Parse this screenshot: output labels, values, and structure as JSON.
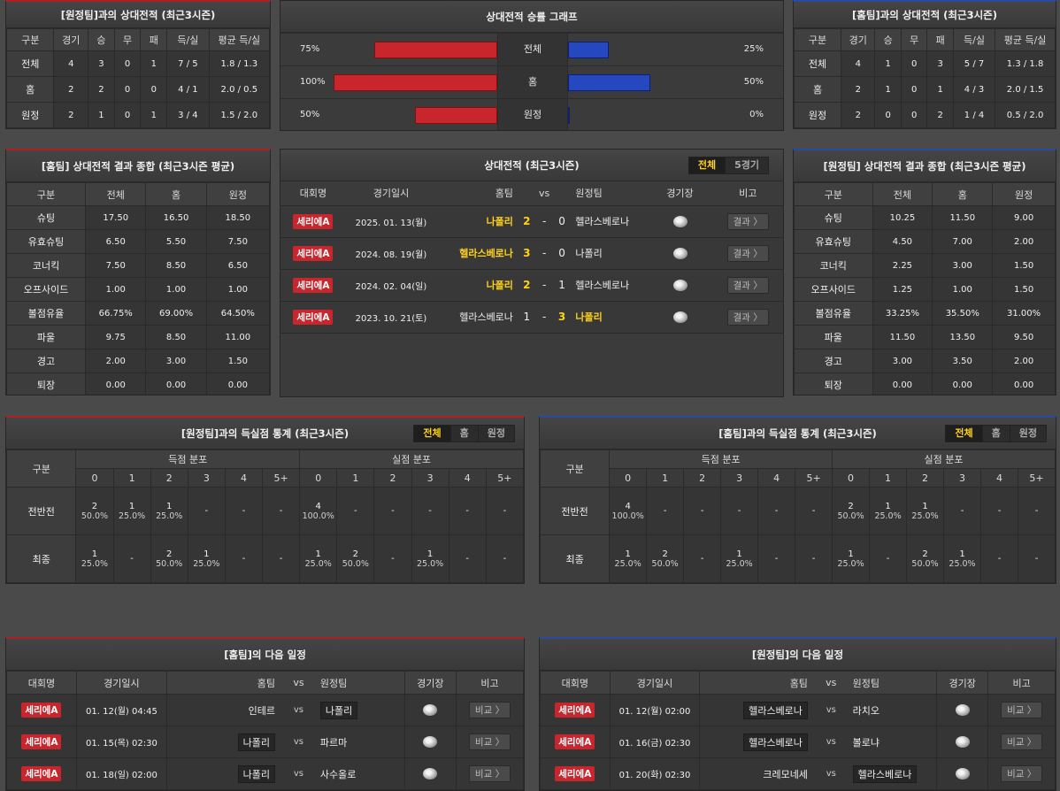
{
  "away_h2h": {
    "title": "[원정팀]과의 상대전적 (최근3시즌)",
    "headers": [
      "구분",
      "경기",
      "승",
      "무",
      "패",
      "득/실",
      "평균 득/실"
    ],
    "rows": [
      [
        "전체",
        "4",
        "3",
        "0",
        "1",
        "7 / 5",
        "1.8 / 1.3"
      ],
      [
        "홈",
        "2",
        "2",
        "0",
        "0",
        "4 / 1",
        "2.0 / 0.5"
      ],
      [
        "원정",
        "2",
        "1",
        "0",
        "1",
        "3 / 4",
        "1.5 / 2.0"
      ]
    ]
  },
  "graph": {
    "title": "상대전적 승률 그래프",
    "rows": [
      {
        "label": "전체",
        "left": "75%",
        "right": "25%",
        "lv": 75,
        "rv": 25
      },
      {
        "label": "홈",
        "left": "100%",
        "right": "50%",
        "lv": 100,
        "rv": 50
      },
      {
        "label": "원정",
        "left": "50%",
        "right": "0%",
        "lv": 50,
        "rv": 0
      }
    ],
    "home_color": "#c8252d",
    "away_color": "#2548c0"
  },
  "home_h2h": {
    "title": "[홈팀]과의 상대전적 (최근3시즌)",
    "headers": [
      "구분",
      "경기",
      "승",
      "무",
      "패",
      "득/실",
      "평균 득/실"
    ],
    "rows": [
      [
        "전체",
        "4",
        "1",
        "0",
        "3",
        "5 / 7",
        "1.3 / 1.8"
      ],
      [
        "홈",
        "2",
        "1",
        "0",
        "1",
        "4 / 3",
        "2.0 / 1.5"
      ],
      [
        "원정",
        "2",
        "0",
        "0",
        "2",
        "1 / 4",
        "0.5 / 2.0"
      ]
    ]
  },
  "home_summary": {
    "title": "[홈팀] 상대전적 결과 종합 (최근3시즌 평균)",
    "headers": [
      "구분",
      "전체",
      "홈",
      "원정"
    ],
    "rows": [
      [
        "슈팅",
        "17.50",
        "16.50",
        "18.50"
      ],
      [
        "유효슈팅",
        "6.50",
        "5.50",
        "7.50"
      ],
      [
        "코너킥",
        "7.50",
        "8.50",
        "6.50"
      ],
      [
        "오프사이드",
        "1.00",
        "1.00",
        "1.00"
      ],
      [
        "볼점유율",
        "66.75%",
        "69.00%",
        "64.50%"
      ],
      [
        "파울",
        "9.75",
        "8.50",
        "11.00"
      ],
      [
        "경고",
        "2.00",
        "3.00",
        "1.50"
      ],
      [
        "퇴장",
        "0.00",
        "0.00",
        "0.00"
      ]
    ]
  },
  "away_summary": {
    "title": "[원정팀] 상대전적 결과 종합 (최근3시즌 평균)",
    "headers": [
      "구분",
      "전체",
      "홈",
      "원정"
    ],
    "rows": [
      [
        "슈팅",
        "10.25",
        "11.50",
        "9.00"
      ],
      [
        "유효슈팅",
        "4.50",
        "7.00",
        "2.00"
      ],
      [
        "코너킥",
        "2.25",
        "3.00",
        "1.50"
      ],
      [
        "오프사이드",
        "1.25",
        "1.00",
        "1.50"
      ],
      [
        "볼점유율",
        "33.25%",
        "35.50%",
        "31.00%"
      ],
      [
        "파울",
        "11.50",
        "13.50",
        "9.50"
      ],
      [
        "경고",
        "3.00",
        "3.50",
        "2.00"
      ],
      [
        "퇴장",
        "0.00",
        "0.00",
        "0.00"
      ]
    ]
  },
  "recent": {
    "title": "상대전적 (최근3시즌)",
    "toggle": [
      "전체",
      "5경기"
    ],
    "headers": {
      "league": "대회명",
      "date": "경기일시",
      "home": "홈팀",
      "vs": "vs",
      "away": "원정팀",
      "venue": "경기장",
      "note": "비고"
    },
    "result_label": "결과 〉",
    "matches": [
      {
        "league": "세리에A",
        "date": "2025. 01. 13(월)",
        "home": "나폴리",
        "hs": "2",
        "as": "0",
        "away": "헬라스베로나",
        "win": "home"
      },
      {
        "league": "세리에A",
        "date": "2024. 08. 19(월)",
        "home": "헬라스베로나",
        "hs": "3",
        "as": "0",
        "away": "나폴리",
        "win": "home"
      },
      {
        "league": "세리에A",
        "date": "2024. 02. 04(일)",
        "home": "나폴리",
        "hs": "2",
        "as": "1",
        "away": "헬라스베로나",
        "win": "home"
      },
      {
        "league": "세리에A",
        "date": "2023. 10. 21(토)",
        "home": "헬라스베로나",
        "hs": "1",
        "as": "3",
        "away": "나폴리",
        "win": "away"
      }
    ]
  },
  "goal_stats_left": {
    "title": "[원정팀]과의 득실점 통계 (최근3시즌)",
    "toggle": [
      "전체",
      "홈",
      "원정"
    ],
    "col_label": "구분",
    "scored_label": "득점 분포",
    "conceded_label": "실점 분포",
    "buckets": [
      "0",
      "1",
      "2",
      "3",
      "4",
      "5+"
    ],
    "rows": [
      {
        "label": "전반전",
        "scored": [
          [
            "2",
            "50.0%"
          ],
          [
            "1",
            "25.0%"
          ],
          [
            "1",
            "25.0%"
          ],
          [
            "-",
            ""
          ],
          [
            "-",
            ""
          ],
          [
            "-",
            ""
          ]
        ],
        "conceded": [
          [
            "4",
            "100.0%"
          ],
          [
            "-",
            ""
          ],
          [
            "-",
            ""
          ],
          [
            "-",
            ""
          ],
          [
            "-",
            ""
          ],
          [
            "-",
            ""
          ]
        ]
      },
      {
        "label": "최종",
        "scored": [
          [
            "1",
            "25.0%"
          ],
          [
            "-",
            ""
          ],
          [
            "2",
            "50.0%"
          ],
          [
            "1",
            "25.0%"
          ],
          [
            "-",
            ""
          ],
          [
            "-",
            ""
          ]
        ],
        "conceded": [
          [
            "1",
            "25.0%"
          ],
          [
            "2",
            "50.0%"
          ],
          [
            "-",
            ""
          ],
          [
            "1",
            "25.0%"
          ],
          [
            "-",
            ""
          ],
          [
            "-",
            ""
          ]
        ]
      }
    ]
  },
  "goal_stats_right": {
    "title": "[홈팀]과의 득실점 통계 (최근3시즌)",
    "toggle": [
      "전체",
      "홈",
      "원정"
    ],
    "col_label": "구분",
    "scored_label": "득점 분포",
    "conceded_label": "실점 분포",
    "buckets": [
      "0",
      "1",
      "2",
      "3",
      "4",
      "5+"
    ],
    "rows": [
      {
        "label": "전반전",
        "scored": [
          [
            "4",
            "100.0%"
          ],
          [
            "-",
            ""
          ],
          [
            "-",
            ""
          ],
          [
            "-",
            ""
          ],
          [
            "-",
            ""
          ],
          [
            "-",
            ""
          ]
        ],
        "conceded": [
          [
            "2",
            "50.0%"
          ],
          [
            "1",
            "25.0%"
          ],
          [
            "1",
            "25.0%"
          ],
          [
            "-",
            ""
          ],
          [
            "-",
            ""
          ],
          [
            "-",
            ""
          ]
        ]
      },
      {
        "label": "최종",
        "scored": [
          [
            "1",
            "25.0%"
          ],
          [
            "2",
            "50.0%"
          ],
          [
            "-",
            ""
          ],
          [
            "1",
            "25.0%"
          ],
          [
            "-",
            ""
          ],
          [
            "-",
            ""
          ]
        ],
        "conceded": [
          [
            "1",
            "25.0%"
          ],
          [
            "-",
            ""
          ],
          [
            "2",
            "50.0%"
          ],
          [
            "1",
            "25.0%"
          ],
          [
            "-",
            ""
          ],
          [
            "-",
            ""
          ]
        ]
      }
    ]
  },
  "home_next": {
    "title": "[홈팀]의 다음 일정",
    "headers": {
      "league": "대회명",
      "date": "경기일시",
      "home": "홈팀",
      "vs": "vs",
      "away": "원정팀",
      "venue": "경기장",
      "note": "비고"
    },
    "btn_label": "비교 〉",
    "team": "나폴리",
    "matches": [
      {
        "league": "세리에A",
        "date": "01. 12(월) 04:45",
        "home": "인테르",
        "away": "나폴리"
      },
      {
        "league": "세리에A",
        "date": "01. 15(목) 02:30",
        "home": "나폴리",
        "away": "파르마"
      },
      {
        "league": "세리에A",
        "date": "01. 18(일) 02:00",
        "home": "나폴리",
        "away": "사수올로"
      }
    ]
  },
  "away_next": {
    "title": "[원정팀]의 다음 일정",
    "headers": {
      "league": "대회명",
      "date": "경기일시",
      "home": "홈팀",
      "vs": "vs",
      "away": "원정팀",
      "venue": "경기장",
      "note": "비고"
    },
    "btn_label": "비교 〉",
    "team": "헬라스베로나",
    "matches": [
      {
        "league": "세리에A",
        "date": "01. 12(월) 02:00",
        "home": "헬라스베로나",
        "away": "라치오"
      },
      {
        "league": "세리에A",
        "date": "01. 16(금) 02:30",
        "home": "헬라스베로나",
        "away": "볼로냐"
      },
      {
        "league": "세리에A",
        "date": "01. 20(화) 02:30",
        "home": "크레모네세",
        "away": "헬라스베로나"
      }
    ]
  }
}
